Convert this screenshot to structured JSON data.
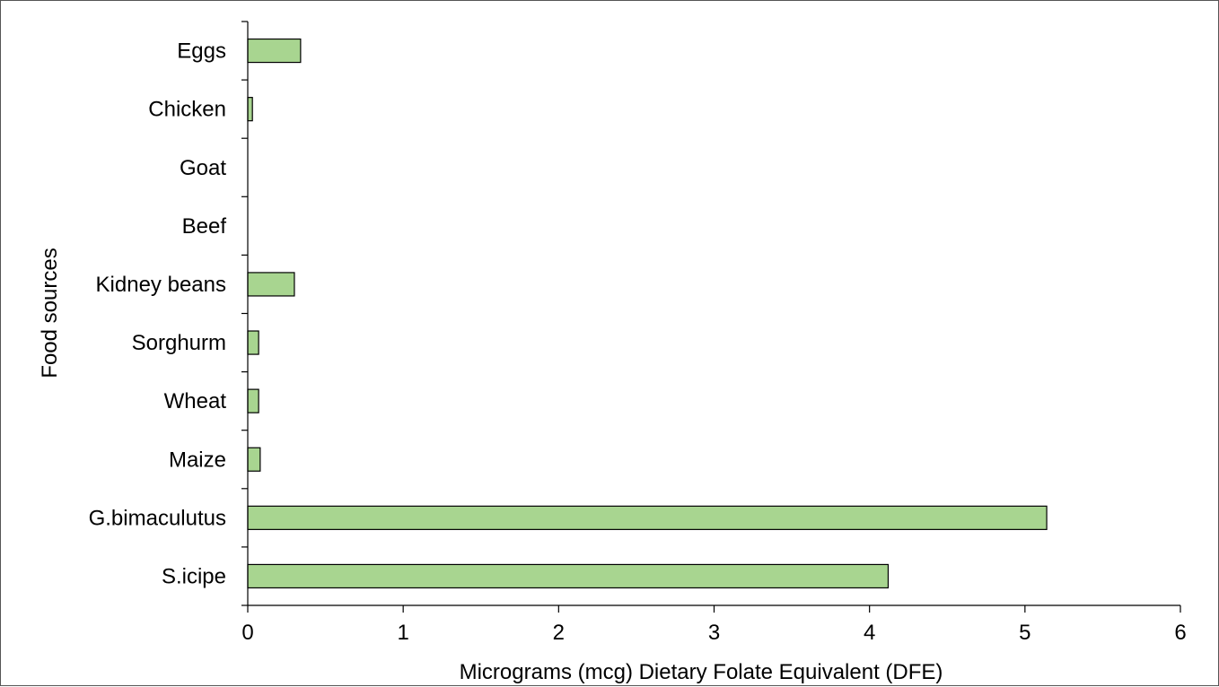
{
  "chart_data": {
    "type": "bar",
    "orientation": "horizontal",
    "categories": [
      "Eggs",
      "Chicken",
      "Goat",
      "Beef",
      "Kidney beans",
      "Sorghurm",
      "Wheat",
      "Maize",
      "G.bimaculutus",
      "S.icipe"
    ],
    "values": [
      0.34,
      0.03,
      0,
      0,
      0.3,
      0.07,
      0.07,
      0.08,
      5.14,
      4.12
    ],
    "xlabel": "Micrograms (mcg) Dietary Folate Equivalent (DFE)",
    "ylabel": "Food sources",
    "xlim": [
      0,
      6
    ],
    "xticks": [
      "0",
      "1",
      "2",
      "3",
      "4",
      "5",
      "6"
    ],
    "grid": false,
    "legend": "none",
    "colors": {
      "bar_fill": "#a8d590",
      "bar_stroke": "#000000",
      "axis": "#000000"
    }
  }
}
